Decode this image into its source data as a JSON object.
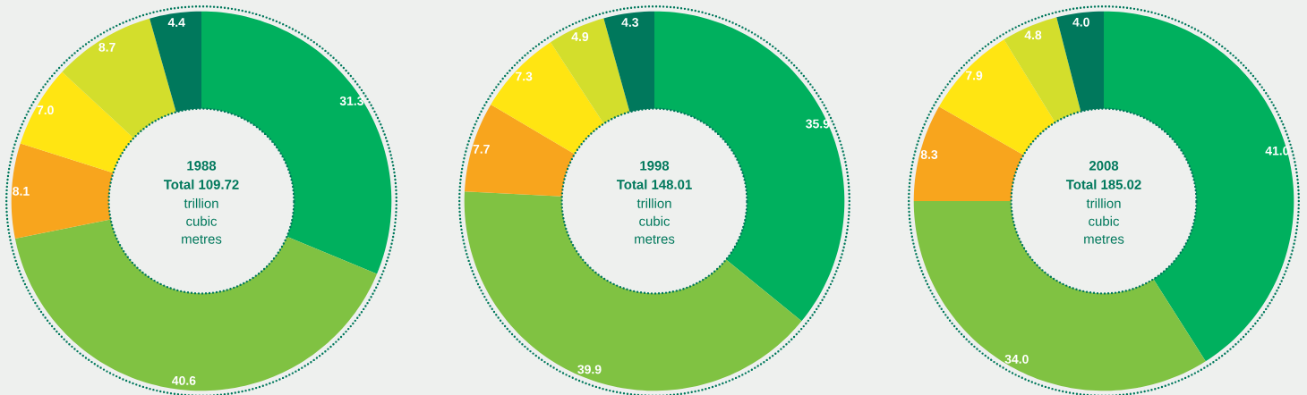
{
  "chart_data": [
    {
      "type": "donut",
      "title": "1988",
      "subtitle": "Total 109.72",
      "annotations": [
        "trillion cubic metres"
      ],
      "categories": [
        null,
        null,
        null,
        null,
        null,
        null
      ],
      "values": [
        31.3,
        40.6,
        8.1,
        7.0,
        8.7,
        4.4
      ],
      "value_labels": [
        "31.3",
        "40.6",
        "8.1",
        "7.0",
        "8.7",
        "4.4"
      ],
      "colors": [
        "#00b05e",
        "#80c242",
        "#f8a51d",
        "#ffe512",
        "#d3de2c",
        "#00785c"
      ]
    },
    {
      "type": "donut",
      "title": "1998",
      "subtitle": "Total 148.01",
      "annotations": [
        "trillion cubic metres"
      ],
      "categories": [
        null,
        null,
        null,
        null,
        null,
        null
      ],
      "values": [
        35.9,
        39.9,
        7.7,
        7.3,
        4.9,
        4.3
      ],
      "value_labels": [
        "35.9",
        "39.9",
        "7.7",
        "7.3",
        "4.9",
        "4.3"
      ],
      "colors": [
        "#00b05e",
        "#80c242",
        "#f8a51d",
        "#ffe512",
        "#d3de2c",
        "#00785c"
      ]
    },
    {
      "type": "donut",
      "title": "2008",
      "subtitle": "Total 185.02",
      "annotations": [
        "trillion cubic metres"
      ],
      "categories": [
        null,
        null,
        null,
        null,
        null,
        null
      ],
      "values": [
        41.0,
        34.0,
        8.3,
        7.9,
        4.8,
        4.0
      ],
      "value_labels": [
        "41.0",
        "34.0",
        "8.3",
        "7.9",
        "4.8",
        "4.0"
      ],
      "colors": [
        "#00b05e",
        "#80c242",
        "#f8a51d",
        "#ffe512",
        "#d3de2c",
        "#00785c"
      ]
    }
  ]
}
